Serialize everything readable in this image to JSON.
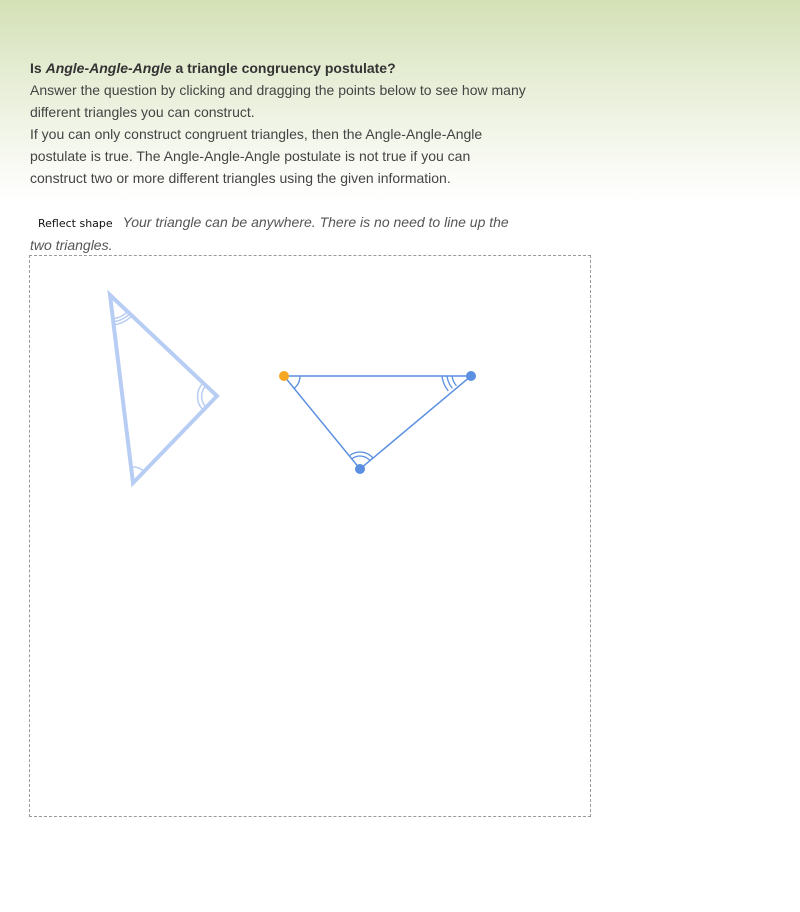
{
  "question": {
    "prefix": "Is ",
    "emphasis": "Angle-Angle-Angle",
    "suffix": " a triangle congruency postulate?"
  },
  "instructions": [
    "Answer the question by clicking and dragging the points below to see how many different triangles you can construct.",
    "If you can only construct congruent triangles, then the Angle-Angle-Angle postulate is true. The Angle-Angle-Angle postulate is not true if you can construct two or more different triangles using the given information."
  ],
  "controls": {
    "reflect_label": "Reflect shape",
    "hint": "Your triangle can be anywhere. There is no need to line up the two triangles."
  },
  "colors": {
    "reference_triangle": "#b8cdf3",
    "user_triangle": "#5b8fe0",
    "selected_point": "#f5a623",
    "point": "#5b8fe0"
  }
}
